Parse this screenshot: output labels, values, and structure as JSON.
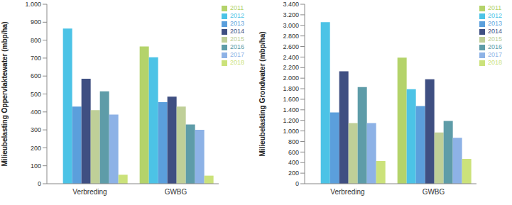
{
  "chart_data": [
    {
      "type": "bar",
      "y_label": "Milieubelasting Oppervlaktewater (mbp/ha)",
      "categories": [
        "Verbreding",
        "GWBG"
      ],
      "series": [
        {
          "name": "2011",
          "color": "#b4d36a",
          "values": [
            null,
            765
          ]
        },
        {
          "name": "2012",
          "color": "#4cc3e6",
          "values": [
            865,
            705
          ]
        },
        {
          "name": "2013",
          "color": "#5b9fdc",
          "values": [
            430,
            455
          ]
        },
        {
          "name": "2014",
          "color": "#3f4f82",
          "values": [
            585,
            485
          ]
        },
        {
          "name": "2015",
          "color": "#bfcf98",
          "values": [
            410,
            430
          ]
        },
        {
          "name": "2016",
          "color": "#5e9ca8",
          "values": [
            515,
            330
          ]
        },
        {
          "name": "2017",
          "color": "#8db2e6",
          "values": [
            385,
            300
          ]
        },
        {
          "name": "2018",
          "color": "#cbe27a",
          "values": [
            50,
            45
          ]
        }
      ],
      "ylim": [
        0,
        1000
      ],
      "yticks": [
        0,
        100,
        200,
        300,
        400,
        500,
        600,
        700,
        800,
        900,
        {
          "value": 1000,
          "label": "1.000"
        }
      ],
      "grid": false,
      "legend": "right"
    },
    {
      "type": "bar",
      "y_label": "Milieubelasting Grondwater (mbp/ha)",
      "categories": [
        "Verbreding",
        "GWBG"
      ],
      "series": [
        {
          "name": "2011",
          "color": "#b4d36a",
          "values": [
            null,
            2390
          ]
        },
        {
          "name": "2012",
          "color": "#4cc3e6",
          "values": [
            3060,
            1790
          ]
        },
        {
          "name": "2013",
          "color": "#5b9fdc",
          "values": [
            1350,
            1470
          ]
        },
        {
          "name": "2014",
          "color": "#3f4f82",
          "values": [
            2130,
            1980
          ]
        },
        {
          "name": "2015",
          "color": "#bfcf98",
          "values": [
            1150,
            970
          ]
        },
        {
          "name": "2016",
          "color": "#5e9ca8",
          "values": [
            1830,
            1190
          ]
        },
        {
          "name": "2017",
          "color": "#8db2e6",
          "values": [
            1150,
            870
          ]
        },
        {
          "name": "2018",
          "color": "#cbe27a",
          "values": [
            430,
            470
          ]
        }
      ],
      "ylim": [
        0,
        3400
      ],
      "yticks": [
        0,
        200,
        400,
        600,
        800,
        {
          "value": 1000,
          "label": "1.000"
        },
        {
          "value": 1200,
          "label": "1.200"
        },
        {
          "value": 1400,
          "label": "1.400"
        },
        {
          "value": 1600,
          "label": "1.600"
        },
        {
          "value": 1800,
          "label": "1.800"
        },
        {
          "value": 2000,
          "label": "2.000"
        },
        {
          "value": 2200,
          "label": "2.200"
        },
        {
          "value": 2400,
          "label": "2.400"
        },
        {
          "value": 2600,
          "label": "2.600"
        },
        {
          "value": 2800,
          "label": "2.800"
        },
        {
          "value": 3000,
          "label": "3.000"
        },
        {
          "value": 3200,
          "label": "3.200"
        },
        {
          "value": 3400,
          "label": "3.400"
        }
      ],
      "grid": false,
      "legend": "right"
    }
  ]
}
